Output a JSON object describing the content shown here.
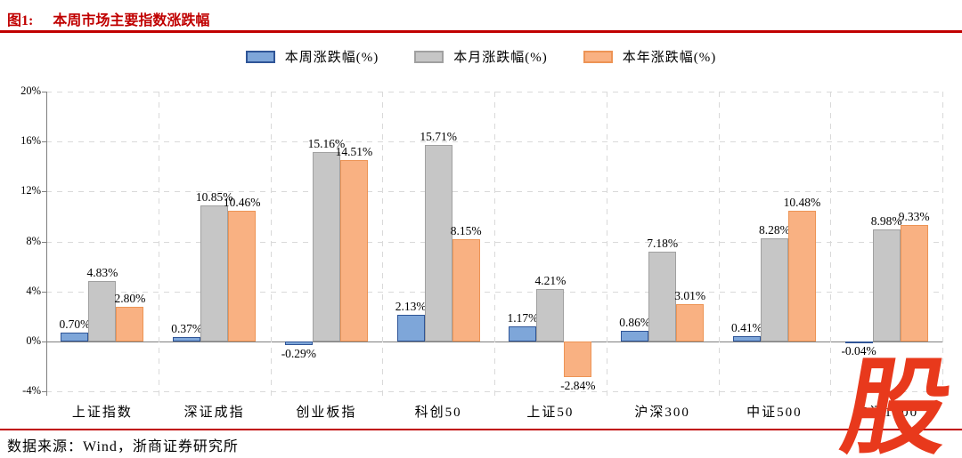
{
  "header": {
    "figure_label": "图1:",
    "title": "本周市场主要指数涨跌幅"
  },
  "chart_data": {
    "type": "bar",
    "title": "本周市场主要指数涨跌幅",
    "categories": [
      "上证指数",
      "深证成指",
      "创业板指",
      "科创50",
      "上证50",
      "沪深300",
      "中证500",
      "中证1000"
    ],
    "series": [
      {
        "name": "本周涨跌幅(%)",
        "color": "#7EA6D9",
        "border_color": "#2F5597",
        "values": [
          0.7,
          0.37,
          -0.29,
          2.13,
          1.17,
          0.86,
          0.41,
          -0.04
        ]
      },
      {
        "name": "本月涨跌幅(%)",
        "color": "#C6C6C6",
        "border_color": "#A0A0A0",
        "values": [
          4.83,
          10.85,
          15.16,
          15.71,
          4.21,
          7.18,
          8.28,
          8.98
        ]
      },
      {
        "name": "本年涨跌幅(%)",
        "color": "#F9B182",
        "border_color": "#ED9455",
        "values": [
          2.8,
          10.46,
          14.51,
          8.15,
          -2.84,
          3.01,
          10.48,
          9.33
        ]
      }
    ],
    "ylim": [
      -4,
      20
    ],
    "yticks": [
      20,
      16,
      12,
      8,
      4,
      0,
      -4
    ],
    "ytick_labels": [
      "20%",
      "16%",
      "12%",
      "8%",
      "4%",
      "0%",
      "-4%"
    ],
    "value_label_format": "two_decimals_percent",
    "grid": "dashed horizontal gridlines and dashed vertical category dividers, solid zero line",
    "legend_position": "top-center"
  },
  "footer": {
    "source": "数据来源：Wind，浙商证券研究所"
  },
  "watermark": {
    "text": "股",
    "color": "#E8391C"
  },
  "colors": {
    "accent_red": "#C00000"
  }
}
